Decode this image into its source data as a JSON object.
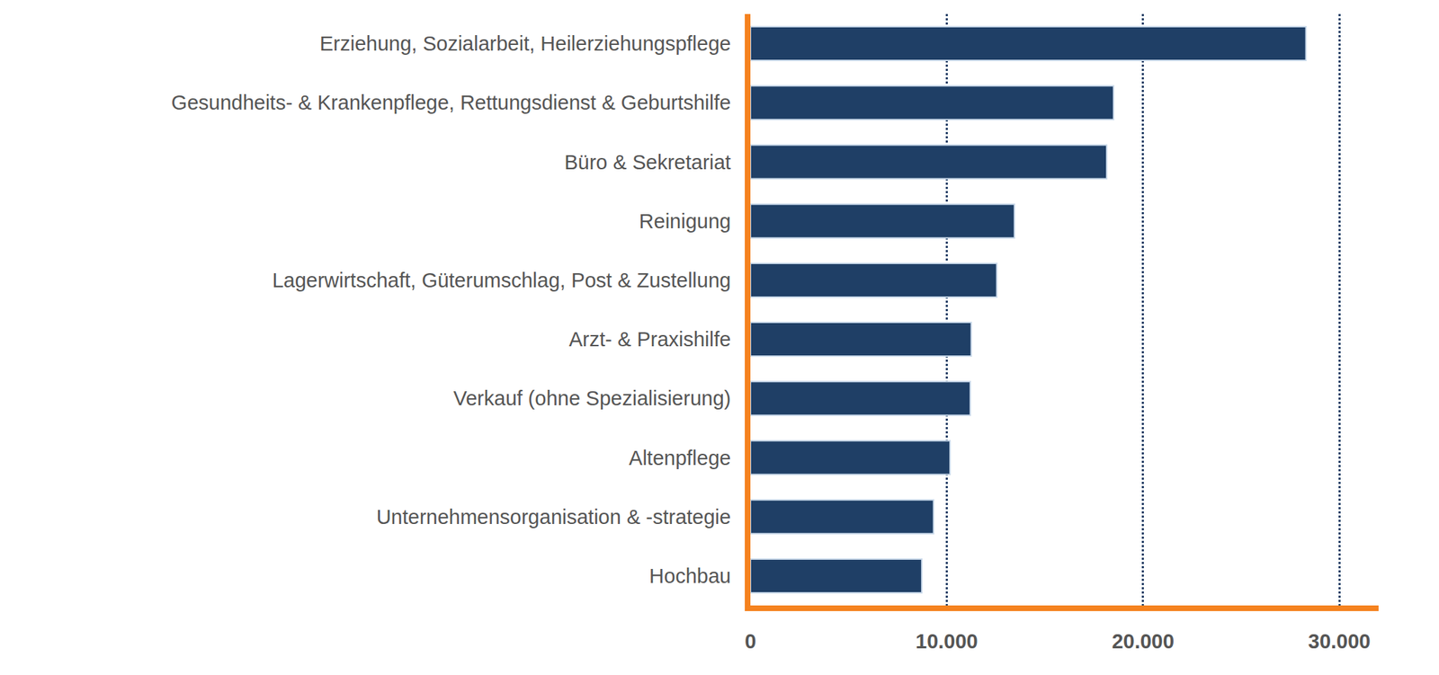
{
  "chart_data": {
    "type": "bar",
    "orientation": "horizontal",
    "categories": [
      "Erziehung, Sozialarbeit, Heilerziehungspflege",
      "Gesundheits- & Krankenpflege, Rettungsdienst & Geburtshilfe",
      "Büro & Sekretariat",
      "Reinigung",
      "Lagerwirtschaft, Güterumschlag, Post & Zustellung",
      "Arzt- & Praxishilfe",
      "Verkauf (ohne Spezialisierung)",
      "Altenpflege",
      "Unternehmensorganisation & -strategie",
      "Hochbau"
    ],
    "values": [
      28300,
      18500,
      18150,
      13450,
      12550,
      11250,
      11200,
      10170,
      9330,
      8730
    ],
    "color": "#1f3f66",
    "xlim": [
      0,
      32000
    ],
    "xticks": [
      0,
      {
        "value": 10000,
        "label": "10.000"
      },
      {
        "value": 20000,
        "label": "20.000"
      },
      {
        "value": 30000,
        "label": "30.000"
      }
    ],
    "grid": true
  }
}
